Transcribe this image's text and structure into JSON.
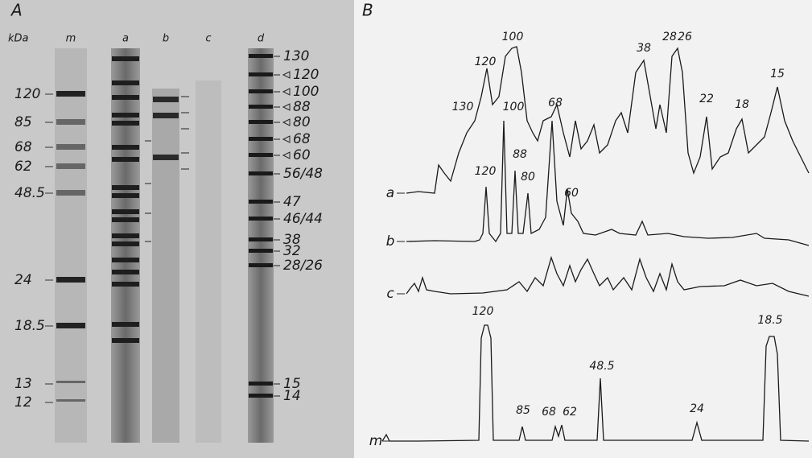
{
  "panel_a": {
    "label": "A",
    "unit": "kDa",
    "lanes": [
      "m",
      "a",
      "b",
      "c",
      "d"
    ],
    "markers": [
      "120",
      "85",
      "68",
      "62",
      "48.5",
      "24",
      "18.5",
      "13",
      "12"
    ],
    "lane_d_labels": [
      "130",
      "120",
      "100",
      "88",
      "80",
      "68",
      "60",
      "56/48",
      "47",
      "46/44",
      "38",
      "32",
      "28/26",
      "15",
      "14"
    ]
  },
  "panel_b": {
    "label": "B",
    "traces": [
      "a",
      "b",
      "c",
      "m"
    ],
    "peaks_a": [
      "130",
      "120",
      "100",
      "68",
      "38",
      "28",
      "26",
      "22",
      "18",
      "15"
    ],
    "peaks_b": [
      "120",
      "100",
      "88",
      "80",
      "60"
    ],
    "peaks_m": [
      "120",
      "85",
      "68",
      "62",
      "48.5",
      "24",
      "18.5"
    ]
  }
}
